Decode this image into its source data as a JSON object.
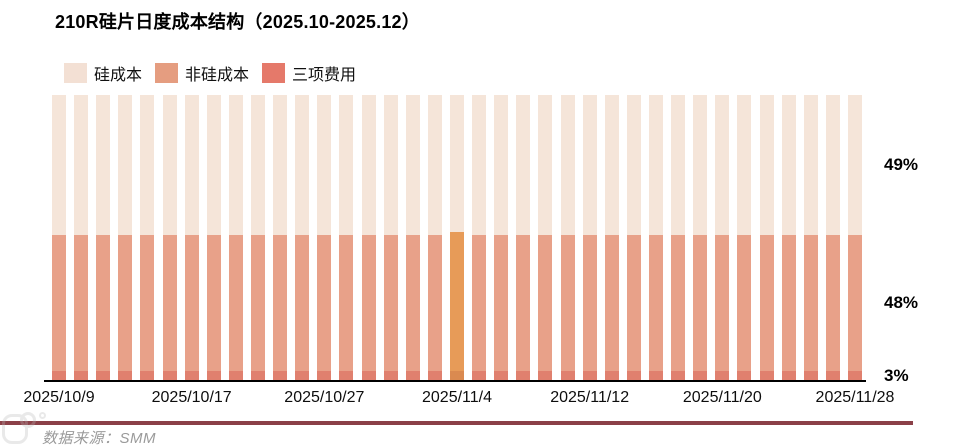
{
  "title": "210R硅片日度成本结构（2025.10-2025.12）",
  "legend": [
    {
      "label": "硅成本",
      "color": "#F3E0D4"
    },
    {
      "label": "非硅成本",
      "color": "#E59D80"
    },
    {
      "label": "三项费用",
      "color": "#E5796A"
    }
  ],
  "chart_data": {
    "type": "bar",
    "stacked": true,
    "unit": "%",
    "title": "210R硅片日度成本结构（2025.10-2025.12）",
    "series_names": [
      "硅成本",
      "非硅成本",
      "三项费用"
    ],
    "bar_count": 37,
    "default_values": [
      49,
      48,
      3
    ],
    "colors": [
      "#F5E5D9",
      "#E8A189",
      "#E0806E"
    ],
    "highlight": {
      "index": 18,
      "date": "2025/11/4",
      "values": [
        48,
        49,
        3
      ],
      "colors": [
        "#F5E5D9",
        "#E79B58",
        "#DA8A50"
      ]
    },
    "ylim": [
      0,
      100
    ],
    "grid": false,
    "legend_position": "top-left",
    "x_ticks": [
      {
        "label": "2025/10/9",
        "bar_index": 0
      },
      {
        "label": "2025/10/17",
        "bar_index": 6
      },
      {
        "label": "2025/10/27",
        "bar_index": 12
      },
      {
        "label": "2025/11/4",
        "bar_index": 18
      },
      {
        "label": "2025/11/12",
        "bar_index": 24
      },
      {
        "label": "2025/11/20",
        "bar_index": 30
      },
      {
        "label": "2025/11/28",
        "bar_index": 36
      }
    ],
    "right_labels": [
      "49%",
      "48%",
      "3%"
    ]
  },
  "source": "数据来源：SMM"
}
